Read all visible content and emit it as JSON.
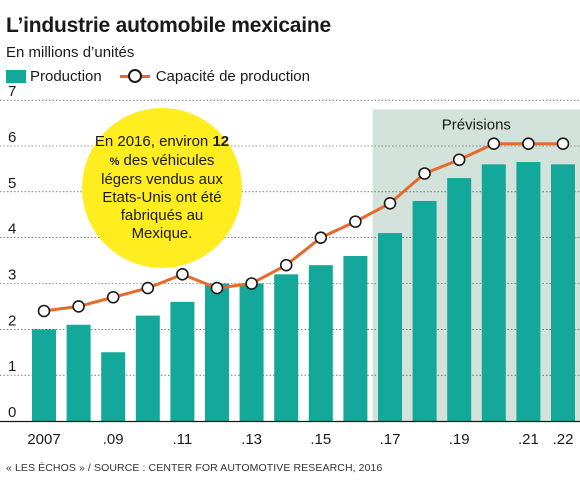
{
  "header": {
    "title": "L’industrie automobile mexicaine",
    "subtitle": "En millions d’unités"
  },
  "legend": {
    "production": "Production",
    "capacity": "Capacité de production"
  },
  "annotation": {
    "pre": "En 2016, environ ",
    "value": "12",
    "unit": " %",
    "post": " des véhicules légers vendus aux Etats-Unis ont été fabriqués au Mexique."
  },
  "forecast_label": "Prévisions",
  "source": "« LES ÉCHOS » / SOURCE : CENTER FOR AUTOMOTIVE RESEARCH, 2016",
  "colors": {
    "bar": "#14a89a",
    "line": "#e8692a",
    "forecast_band": "#d3e2da",
    "bubble": "#ffed1f"
  },
  "chart_data": {
    "type": "bar",
    "x": [
      2007,
      2008,
      2009,
      2010,
      2011,
      2012,
      2013,
      2014,
      2015,
      2016,
      2017,
      2018,
      2019,
      2020,
      2021,
      2022
    ],
    "x_tick_labels": [
      "2007",
      ".09",
      ".11",
      ".13",
      ".15",
      ".17",
      ".19",
      ".21",
      ".22"
    ],
    "x_tick_values": [
      2007,
      2009,
      2011,
      2013,
      2015,
      2017,
      2019,
      2021,
      2022
    ],
    "series": [
      {
        "name": "Production",
        "type": "bar",
        "values": [
          2.0,
          2.1,
          1.5,
          2.3,
          2.6,
          3.0,
          3.0,
          3.2,
          3.4,
          3.6,
          4.1,
          4.8,
          5.3,
          5.6,
          5.65,
          5.6
        ]
      },
      {
        "name": "Capacité de production",
        "type": "line",
        "values": [
          2.4,
          2.5,
          2.7,
          2.9,
          3.2,
          2.9,
          3.0,
          3.4,
          4.0,
          4.35,
          4.75,
          5.4,
          5.7,
          6.05,
          6.05,
          6.05
        ]
      }
    ],
    "forecast_start": 2017,
    "forecast_end": 2022,
    "ylim": [
      0,
      7
    ],
    "y_ticks": [
      0,
      1,
      2,
      3,
      4,
      5,
      6,
      7
    ],
    "grid": true,
    "legend_position": "top-left"
  }
}
